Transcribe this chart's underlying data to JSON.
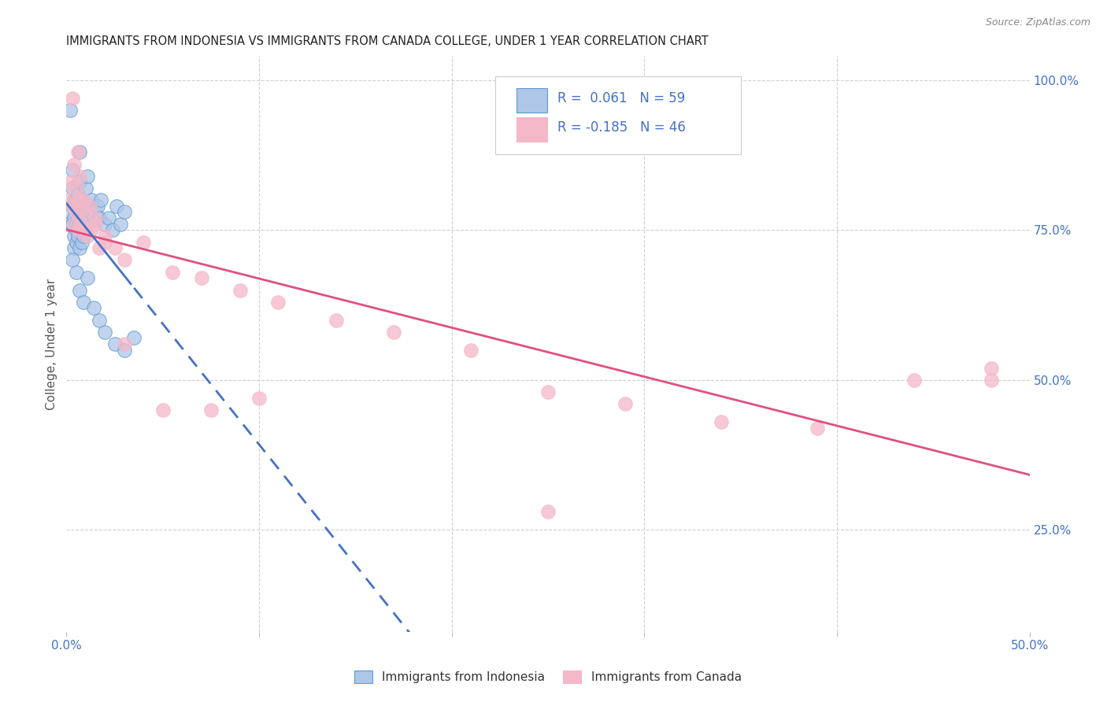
{
  "title": "IMMIGRANTS FROM INDONESIA VS IMMIGRANTS FROM CANADA COLLEGE, UNDER 1 YEAR CORRELATION CHART",
  "source": "Source: ZipAtlas.com",
  "ylabel": "College, Under 1 year",
  "x_min": 0.0,
  "x_max": 0.5,
  "y_min": 0.08,
  "y_max": 1.04,
  "y_ticks": [
    0.25,
    0.5,
    0.75,
    1.0
  ],
  "y_tick_labels": [
    "25.0%",
    "50.0%",
    "75.0%",
    "100.0%"
  ],
  "legend_label1": "Immigrants from Indonesia",
  "legend_label2": "Immigrants from Canada",
  "R1": 0.061,
  "N1": 59,
  "R2": -0.185,
  "N2": 46,
  "color_indonesia_fill": "#aec6e8",
  "color_indonesia_edge": "#5b9bd5",
  "color_canada_fill": "#f4b8c8",
  "color_canada_edge": "#f4b8c8",
  "color_indonesia_line": "#4472c4",
  "color_canada_line": "#e05080",
  "color_axis_label": "#4472c4",
  "color_title": "#222222",
  "background_color": "#ffffff",
  "grid_color": "#d0d0d0",
  "indonesia_x": [
    0.001,
    0.002,
    0.002,
    0.003,
    0.003,
    0.003,
    0.003,
    0.004,
    0.004,
    0.004,
    0.004,
    0.005,
    0.005,
    0.005,
    0.005,
    0.005,
    0.006,
    0.006,
    0.006,
    0.006,
    0.006,
    0.007,
    0.007,
    0.007,
    0.007,
    0.008,
    0.008,
    0.008,
    0.009,
    0.009,
    0.009,
    0.01,
    0.01,
    0.011,
    0.011,
    0.012,
    0.013,
    0.014,
    0.015,
    0.016,
    0.017,
    0.018,
    0.02,
    0.022,
    0.024,
    0.026,
    0.028,
    0.03,
    0.003,
    0.005,
    0.007,
    0.009,
    0.011,
    0.014,
    0.017,
    0.02,
    0.025,
    0.03,
    0.035
  ],
  "indonesia_y": [
    0.76,
    0.95,
    0.78,
    0.82,
    0.76,
    0.85,
    0.79,
    0.8,
    0.74,
    0.77,
    0.72,
    0.76,
    0.79,
    0.8,
    0.73,
    0.75,
    0.78,
    0.75,
    0.77,
    0.81,
    0.74,
    0.83,
    0.88,
    0.76,
    0.72,
    0.79,
    0.75,
    0.73,
    0.8,
    0.77,
    0.74,
    0.82,
    0.76,
    0.84,
    0.78,
    0.79,
    0.8,
    0.77,
    0.78,
    0.79,
    0.77,
    0.8,
    0.76,
    0.77,
    0.75,
    0.79,
    0.76,
    0.78,
    0.7,
    0.68,
    0.65,
    0.63,
    0.67,
    0.62,
    0.6,
    0.58,
    0.56,
    0.55,
    0.57
  ],
  "canada_x": [
    0.001,
    0.002,
    0.003,
    0.003,
    0.004,
    0.005,
    0.005,
    0.006,
    0.006,
    0.007,
    0.008,
    0.009,
    0.01,
    0.011,
    0.012,
    0.013,
    0.015,
    0.017,
    0.02,
    0.025,
    0.03,
    0.04,
    0.055,
    0.07,
    0.09,
    0.11,
    0.14,
    0.17,
    0.21,
    0.25,
    0.29,
    0.34,
    0.39,
    0.44,
    0.48,
    0.004,
    0.007,
    0.01,
    0.015,
    0.02,
    0.03,
    0.05,
    0.075,
    0.1,
    0.25,
    0.48
  ],
  "canada_y": [
    0.8,
    0.83,
    0.97,
    0.79,
    0.86,
    0.82,
    0.78,
    0.75,
    0.88,
    0.84,
    0.76,
    0.8,
    0.78,
    0.74,
    0.79,
    0.75,
    0.76,
    0.72,
    0.74,
    0.72,
    0.7,
    0.73,
    0.68,
    0.67,
    0.65,
    0.63,
    0.6,
    0.58,
    0.55,
    0.48,
    0.46,
    0.43,
    0.42,
    0.5,
    0.52,
    0.76,
    0.8,
    0.75,
    0.77,
    0.73,
    0.56,
    0.45,
    0.45,
    0.47,
    0.28,
    0.5
  ]
}
